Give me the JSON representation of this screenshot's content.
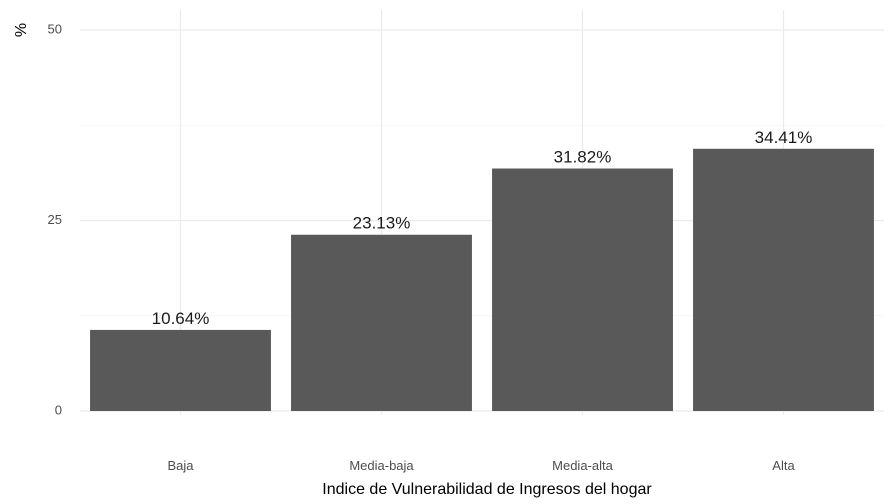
{
  "chart_data": {
    "type": "bar",
    "title": "",
    "xlabel": "Indice de Vulnerabilidad de Ingresos del hogar",
    "ylabel": "%",
    "categories": [
      "Baja",
      "Media-baja",
      "Media-alta",
      "Alta"
    ],
    "values": [
      10.64,
      23.13,
      31.82,
      34.41
    ],
    "data_labels": [
      "10.64%",
      "23.13%",
      "31.82%",
      "34.41%"
    ],
    "ylim": [
      0,
      50
    ],
    "yticks": [
      0,
      25,
      50
    ],
    "ytick_labels": [
      "0",
      "25",
      "50"
    ],
    "grid": true,
    "bar_color": "#595959",
    "legend": "none"
  }
}
